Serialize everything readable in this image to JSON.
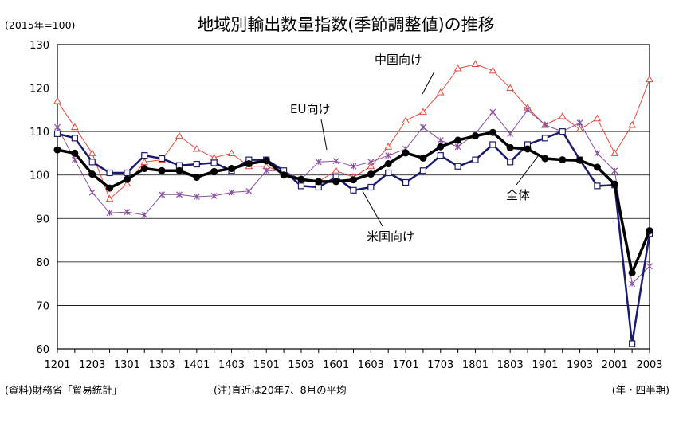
{
  "chart_data": {
    "type": "line",
    "title": "地域別輸出数量指数(季節調整値)の推移",
    "unit_label": "(2015年=100)",
    "x_unit_label": "(年・四半期)",
    "source_note": "(資料)財務省「貿易統計」",
    "footnote": "(注)直近は20年7、8月の平均",
    "ylim": [
      60,
      130
    ],
    "yticks": [
      60,
      70,
      80,
      90,
      100,
      110,
      120,
      130
    ],
    "grid": true,
    "x": [
      "1201",
      "1202",
      "1203",
      "1204",
      "1301",
      "1302",
      "1303",
      "1304",
      "1401",
      "1402",
      "1403",
      "1404",
      "1501",
      "1502",
      "1503",
      "1504",
      "1601",
      "1602",
      "1603",
      "1604",
      "1701",
      "1702",
      "1703",
      "1704",
      "1801",
      "1802",
      "1803",
      "1804",
      "1901",
      "1902",
      "1903",
      "1904",
      "2001",
      "2002",
      "2003"
    ],
    "xticks": [
      "1201",
      "1203",
      "1301",
      "1303",
      "1401",
      "1403",
      "1501",
      "1503",
      "1601",
      "1603",
      "1701",
      "1703",
      "1801",
      "1803",
      "1901",
      "1903",
      "2001",
      "2003"
    ],
    "series": [
      {
        "name": "中国向け",
        "color": "#e8473c",
        "marker": "triangle",
        "width": 1,
        "values": [
          117,
          111,
          105,
          94.5,
          98,
          103,
          103.5,
          109,
          106,
          104,
          105,
          102,
          102,
          100.5,
          99,
          98.5,
          101,
          99.5,
          102,
          106.5,
          112.5,
          114.5,
          119,
          124.5,
          125.5,
          124,
          120,
          115.5,
          111.5,
          113.5,
          110.5,
          113,
          105,
          111.5,
          122
        ]
      },
      {
        "name": "EU向け",
        "color": "#8a4fa0",
        "marker": "x",
        "width": 1,
        "values": [
          111,
          103.5,
          96,
          91.3,
          91.5,
          90.8,
          95.5,
          95.5,
          95,
          95.2,
          96,
          96.3,
          101,
          101,
          99,
          103,
          103.2,
          102,
          103,
          104.5,
          106,
          111,
          108,
          106.5,
          109.5,
          114.5,
          109.5,
          115,
          111.5,
          110,
          112,
          105,
          101,
          75,
          79
        ]
      },
      {
        "name": "米国向け",
        "color": "#1a1a6e",
        "marker": "square",
        "width": 2.5,
        "values": [
          109.5,
          108.5,
          103,
          100.5,
          100.5,
          104.5,
          103.8,
          102.2,
          102.5,
          102.8,
          101,
          103.5,
          103.5,
          101,
          97.5,
          97.2,
          99.5,
          96.5,
          97.2,
          100.5,
          98.3,
          101,
          104.5,
          102,
          103.5,
          107,
          103,
          107,
          108.5,
          110,
          103.5,
          97.5,
          97.7,
          61.2,
          86.5
        ]
      },
      {
        "name": "全体",
        "color": "#000000",
        "marker": "dot",
        "width": 3.5,
        "values": [
          105.8,
          105,
          100.2,
          97,
          99,
          101.5,
          101,
          101,
          99.5,
          100.8,
          101.5,
          102.6,
          103.3,
          100,
          99,
          98.5,
          98.5,
          98.9,
          100.2,
          102.6,
          105.1,
          103.9,
          106.5,
          108,
          109,
          109.8,
          106.3,
          106,
          103.8,
          103.5,
          103.4,
          101.8,
          97.9,
          77.5,
          87.2
        ]
      }
    ],
    "annotations": [
      "中国向け",
      "EU向け",
      "全体",
      "米国向け"
    ]
  }
}
